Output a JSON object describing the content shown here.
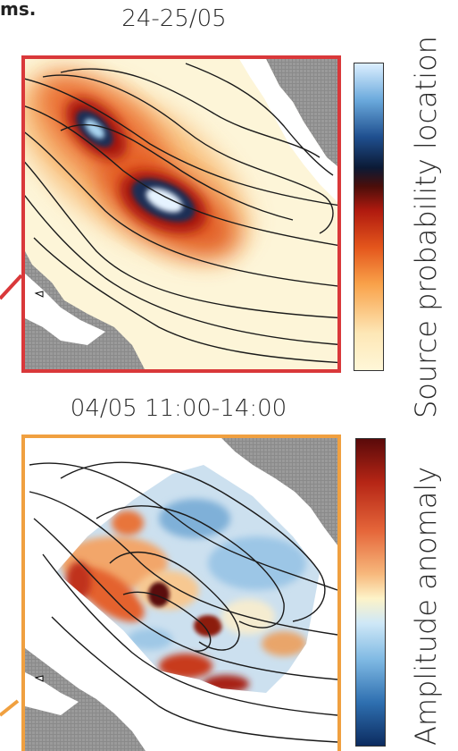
{
  "top_fragment": "ms.",
  "panels": [
    {
      "title": "24-25/05",
      "frame_color": "#d9383a",
      "colorbar_label": "Source probability location",
      "colorbar_stops": [
        "#fff7d8",
        "#fde7b6",
        "#f9a24a",
        "#e4561c",
        "#b01a0f",
        "#4a0e0a",
        "#0b1a35",
        "#1f4f8f",
        "#6aa9dc",
        "#dcefff"
      ]
    },
    {
      "title": "04/05 11:00-14:00",
      "frame_color": "#f0a040",
      "colorbar_label": "Amplitude anomaly",
      "colorbar_stops": [
        "#5a0a0a",
        "#b52515",
        "#e5663a",
        "#f7b87c",
        "#fdf3c8",
        "#cfe8f7",
        "#7fb9e3",
        "#2e6fb0",
        "#0c2c60"
      ]
    }
  ]
}
